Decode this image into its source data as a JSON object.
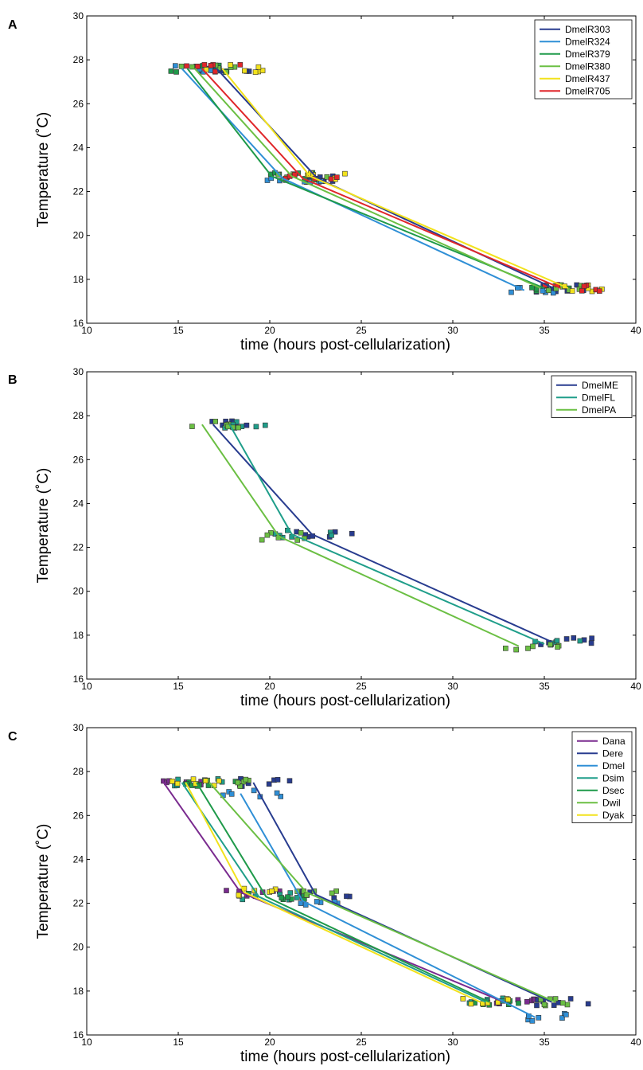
{
  "chart_data": [
    {
      "panel": "A",
      "type": "line",
      "xlabel": "time (hours post-cellularization)",
      "ylabel": "Temperature (˚C)",
      "xlim": [
        10,
        40
      ],
      "ylim": [
        16,
        30
      ],
      "xticks": [
        10,
        15,
        20,
        25,
        30,
        35,
        40
      ],
      "yticks": [
        16,
        18,
        20,
        22,
        24,
        26,
        28,
        30
      ],
      "legend_position": "top-right",
      "series": [
        {
          "name": "DmelR303",
          "color": "#283c8f",
          "x": [
            17.1,
            22.6,
            35.5
          ],
          "y": [
            27.6,
            22.6,
            17.6
          ]
        },
        {
          "name": "DmelR324",
          "color": "#2f8fd6",
          "x": [
            15.2,
            20.7,
            33.9
          ],
          "y": [
            27.6,
            22.6,
            17.5
          ]
        },
        {
          "name": "DmelR379",
          "color": "#1f9a4a",
          "x": [
            15.5,
            20.1,
            35.0
          ],
          "y": [
            27.6,
            22.7,
            17.6
          ]
        },
        {
          "name": "DmelR380",
          "color": "#6bbf43",
          "x": [
            15.9,
            21.2,
            34.8
          ],
          "y": [
            27.6,
            22.7,
            17.6
          ]
        },
        {
          "name": "DmelR437",
          "color": "#f2e21c",
          "x": [
            17.4,
            22.2,
            36.3
          ],
          "y": [
            27.6,
            22.7,
            17.6
          ]
        },
        {
          "name": "DmelR705",
          "color": "#e0262a",
          "x": [
            16.3,
            21.8,
            35.9
          ],
          "y": [
            27.6,
            22.6,
            17.6
          ]
        }
      ]
    },
    {
      "panel": "B",
      "type": "line",
      "xlabel": "time (hours post-cellularization)",
      "ylabel": "Temperature (˚C)",
      "xlim": [
        10,
        40
      ],
      "ylim": [
        16,
        30
      ],
      "xticks": [
        10,
        15,
        20,
        25,
        30,
        35,
        40
      ],
      "yticks": [
        16,
        18,
        20,
        22,
        24,
        26,
        28,
        30
      ],
      "legend_position": "top-right",
      "series": [
        {
          "name": "DmelME",
          "color": "#283c8f",
          "x": [
            16.9,
            22.3,
            35.4
          ],
          "y": [
            27.6,
            22.6,
            17.7
          ]
        },
        {
          "name": "DmelFL",
          "color": "#1f9e8a",
          "x": [
            17.8,
            21.2,
            35.0
          ],
          "y": [
            27.6,
            22.6,
            17.6
          ]
        },
        {
          "name": "DmelPA",
          "color": "#6bbf43",
          "x": [
            16.3,
            20.5,
            33.6
          ],
          "y": [
            27.6,
            22.5,
            17.5
          ]
        }
      ]
    },
    {
      "panel": "C",
      "type": "line",
      "xlabel": "time (hours post-cellularization)",
      "ylabel": "Temperature (˚C)",
      "xlim": [
        10,
        40
      ],
      "ylim": [
        16,
        30
      ],
      "xticks": [
        10,
        15,
        20,
        25,
        30,
        35,
        40
      ],
      "yticks": [
        16,
        18,
        20,
        22,
        24,
        26,
        28,
        30
      ],
      "legend_position": "top-right",
      "series": [
        {
          "name": "Dana",
          "color": "#7a2b8f",
          "x": [
            14.2,
            18.4,
            32.8
          ],
          "y": [
            27.5,
            22.5,
            17.5
          ]
        },
        {
          "name": "Dere",
          "color": "#283c8f",
          "x": [
            19.1,
            22.5,
            35.4
          ],
          "y": [
            27.5,
            22.4,
            17.5
          ]
        },
        {
          "name": "Dmel",
          "color": "#2f8fd6",
          "x": [
            18.4,
            21.8,
            34.5
          ],
          "y": [
            27.0,
            22.1,
            16.8
          ]
        },
        {
          "name": "Dsim",
          "color": "#1f9e8a",
          "x": [
            15.2,
            19.4,
            31.8
          ],
          "y": [
            27.5,
            22.3,
            17.5
          ]
        },
        {
          "name": "Dsec",
          "color": "#1f9a4a",
          "x": [
            16.0,
            19.8,
            32.0
          ],
          "y": [
            27.5,
            22.3,
            17.5
          ]
        },
        {
          "name": "Dwil",
          "color": "#6bbf43",
          "x": [
            16.7,
            22.0,
            35.6
          ],
          "y": [
            27.5,
            22.5,
            17.5
          ]
        },
        {
          "name": "Dyak",
          "color": "#f2e21c",
          "x": [
            15.4,
            18.6,
            31.5
          ],
          "y": [
            27.5,
            22.5,
            17.5
          ]
        }
      ]
    }
  ]
}
